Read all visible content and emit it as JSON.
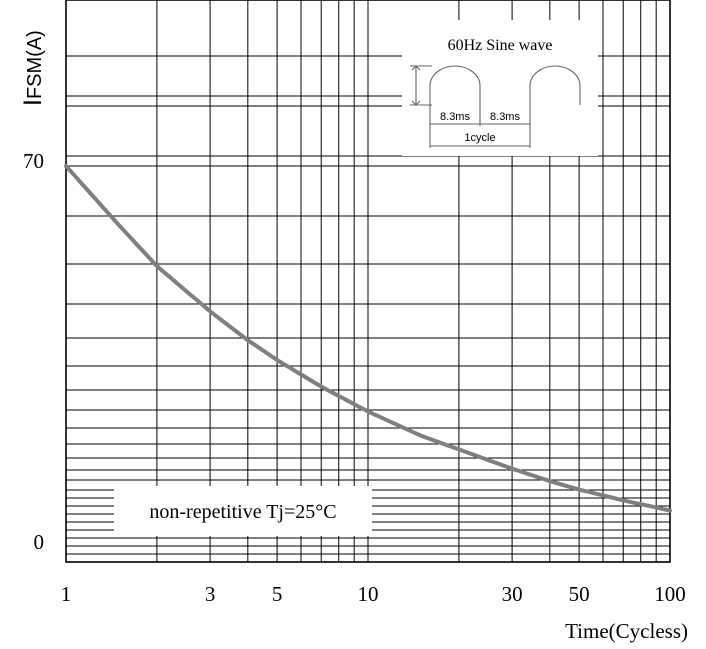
{
  "chart_data": {
    "type": "line",
    "title": "",
    "ylabel_main": "I",
    "ylabel_sub": "FSM(A)",
    "xlabel": "Time(Cycless)",
    "x_scale": "log",
    "xlim": [
      1,
      100
    ],
    "ylim": [
      0,
      70
    ],
    "x_ticks": [
      {
        "value": 1,
        "label": "1"
      },
      {
        "value": 3,
        "label": "3"
      },
      {
        "value": 5,
        "label": "5"
      },
      {
        "value": 10,
        "label": "10"
      },
      {
        "value": 30,
        "label": "30"
      },
      {
        "value": 50,
        "label": "50"
      },
      {
        "value": 100,
        "label": "100"
      }
    ],
    "y_ticks": [
      {
        "value": 70,
        "label": "70"
      },
      {
        "value": 0,
        "label": "0"
      }
    ],
    "grid": true,
    "series": [
      {
        "color": "#7f7f7f",
        "x": [
          1,
          1.5,
          2,
          3,
          4,
          5,
          7,
          10,
          15,
          20,
          30,
          40,
          50,
          70,
          100
        ],
        "y": [
          70,
          59.5,
          52.3,
          44.3,
          39.2,
          35.7,
          31.0,
          26.6,
          22.3,
          19.9,
          16.5,
          14.3,
          12.8,
          10.9,
          9.1
        ]
      }
    ],
    "annotations": {
      "condition": "non-repetitive Tj=25°C",
      "inset_title": "60Hz Sine wave",
      "half_period_1": "8.3ms",
      "half_period_2": "8.3ms",
      "cycle_label": "1cycle"
    }
  }
}
